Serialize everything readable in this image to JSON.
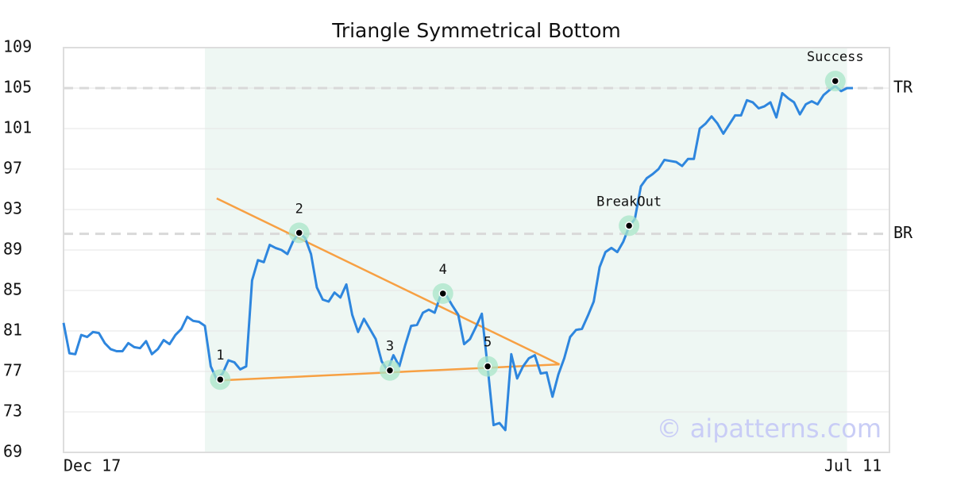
{
  "chart_data": {
    "type": "line",
    "title": "Triangle Symmetrical Bottom",
    "watermark": "© aipatterns.com",
    "ylim": [
      69,
      109
    ],
    "yticks": [
      69,
      73,
      77,
      81,
      85,
      89,
      93,
      97,
      101,
      105,
      109
    ],
    "grid": true,
    "color": "#2e86de",
    "categories": [
      "Dec 17",
      null,
      null,
      null,
      null,
      null,
      null,
      null,
      null,
      null,
      null,
      null,
      null,
      null,
      null,
      null,
      null,
      null,
      null,
      null,
      null,
      null,
      null,
      null,
      null,
      null,
      null,
      null,
      null,
      null,
      null,
      null,
      null,
      null,
      null,
      null,
      null,
      null,
      null,
      null,
      null,
      null,
      null,
      null,
      null,
      null,
      null,
      null,
      null,
      null,
      null,
      null,
      null,
      null,
      null,
      null,
      null,
      null,
      null,
      null,
      null,
      null,
      null,
      null,
      null,
      null,
      null,
      null,
      null,
      null,
      null,
      null,
      null,
      null,
      null,
      null,
      null,
      null,
      null,
      null,
      null,
      null,
      null,
      null,
      null,
      null,
      null,
      null,
      null,
      null,
      null,
      null,
      null,
      null,
      null,
      null,
      null,
      null,
      null,
      null,
      null,
      null,
      null,
      null,
      null,
      null,
      null,
      null,
      null,
      null,
      null,
      null,
      null,
      null,
      null,
      null,
      null,
      null,
      null,
      null,
      null,
      null,
      null,
      null,
      null,
      null,
      null,
      null,
      null,
      null,
      null,
      null,
      null,
      null,
      "Jul 11"
    ],
    "values": [
      81.8,
      78.8,
      78.7,
      80.6,
      80.4,
      80.9,
      80.8,
      79.8,
      79.2,
      79.0,
      79.0,
      79.8,
      79.4,
      79.3,
      80.0,
      78.7,
      79.2,
      80.1,
      79.7,
      80.6,
      81.2,
      82.4,
      82.0,
      81.9,
      81.5,
      77.5,
      76.2,
      76.8,
      78.1,
      77.9,
      77.2,
      77.5,
      86.0,
      88.0,
      87.8,
      89.5,
      89.2,
      89.0,
      88.6,
      89.9,
      90.7,
      90.2,
      88.6,
      85.3,
      84.1,
      83.9,
      84.8,
      84.3,
      85.6,
      82.6,
      80.9,
      82.2,
      81.2,
      80.2,
      78.0,
      77.1,
      78.6,
      77.5,
      79.6,
      81.5,
      81.6,
      82.8,
      83.1,
      82.8,
      84.5,
      84.5,
      83.5,
      82.6,
      79.7,
      80.2,
      81.4,
      82.7,
      77.4,
      71.7,
      71.9,
      71.2,
      78.7,
      76.3,
      77.5,
      78.3,
      78.6,
      76.8,
      76.9,
      74.5,
      76.7,
      78.3,
      80.4,
      81.1,
      81.2,
      82.5,
      83.9,
      87.3,
      88.8,
      89.2,
      88.8,
      89.8,
      91.3,
      92.1,
      95.3,
      96.1,
      96.5,
      97.0,
      97.9,
      97.8,
      97.7,
      97.3,
      98.0,
      98.0,
      101.0,
      101.5,
      102.2,
      101.5,
      100.5,
      101.4,
      102.3,
      102.3,
      103.8,
      103.6,
      103.0,
      103.2,
      103.6,
      102.1,
      104.5,
      104.0,
      103.6,
      102.4,
      103.4,
      103.7,
      103.4,
      104.3,
      104.8,
      105.2,
      104.7,
      105.0,
      105.0
    ],
    "highlight": {
      "x": [
        24,
        133
      ],
      "color": "#eef7f3"
    },
    "trendlines": {
      "color": "#f7a043",
      "lines": [
        {
          "x": [
            26,
            84.2
          ],
          "values": [
            94.1,
            77.7
          ]
        },
        {
          "x": [
            26,
            84.2
          ],
          "values": [
            76.1,
            77.7
          ]
        }
      ]
    },
    "reference_lines": [
      {
        "label": "TR",
        "value": 105
      },
      {
        "label": "BR",
        "value": 90.6
      }
    ],
    "points": [
      {
        "label": "1",
        "x": 26.6,
        "value": 76.2
      },
      {
        "label": "2",
        "x": 40.0,
        "value": 90.7
      },
      {
        "label": "3",
        "x": 55.4,
        "value": 77.1
      },
      {
        "label": "4",
        "x": 64.4,
        "value": 84.7
      },
      {
        "label": "5",
        "x": 72.0,
        "value": 77.5
      },
      {
        "label": "BreakOut",
        "x": 96.0,
        "value": 91.4
      },
      {
        "label": "Success",
        "x": 131.0,
        "value": 105.7
      }
    ]
  }
}
